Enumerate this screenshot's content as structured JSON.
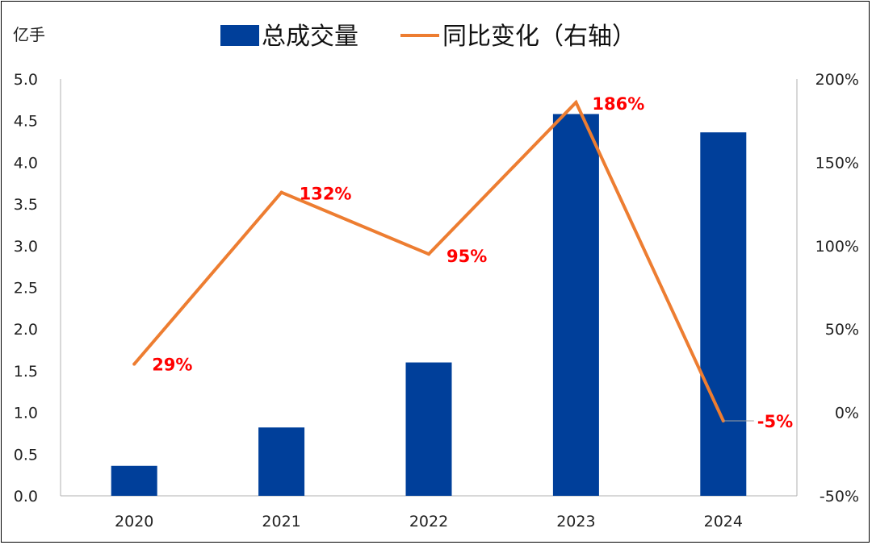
{
  "chart_data": {
    "type": "bar",
    "categories": [
      "2020",
      "2021",
      "2022",
      "2023",
      "2024"
    ],
    "series": [
      {
        "name": "总成交量",
        "type": "bar",
        "axis": "left",
        "values": [
          0.36,
          0.82,
          1.6,
          4.58,
          4.36
        ]
      },
      {
        "name": "同比变化（右轴）",
        "type": "line",
        "axis": "right",
        "values": [
          29,
          132,
          95,
          186,
          -5
        ]
      }
    ],
    "data_labels": [
      "29%",
      "132%",
      "95%",
      "186%",
      "-5%"
    ],
    "left_axis": {
      "unit": "亿手",
      "range": [
        0,
        5
      ],
      "ticks": [
        "0.0",
        "0.5",
        "1.0",
        "1.5",
        "2.0",
        "2.5",
        "3.0",
        "3.5",
        "4.0",
        "4.5",
        "5.0"
      ]
    },
    "right_axis": {
      "range": [
        -50,
        200
      ],
      "ticks": [
        "-50%",
        "0%",
        "50%",
        "100%",
        "150%",
        "200%"
      ]
    },
    "legend_position": "top",
    "grid": false,
    "colors": {
      "bar": "#003f9a",
      "line": "#ed7d31",
      "label": "#ff0000"
    }
  }
}
